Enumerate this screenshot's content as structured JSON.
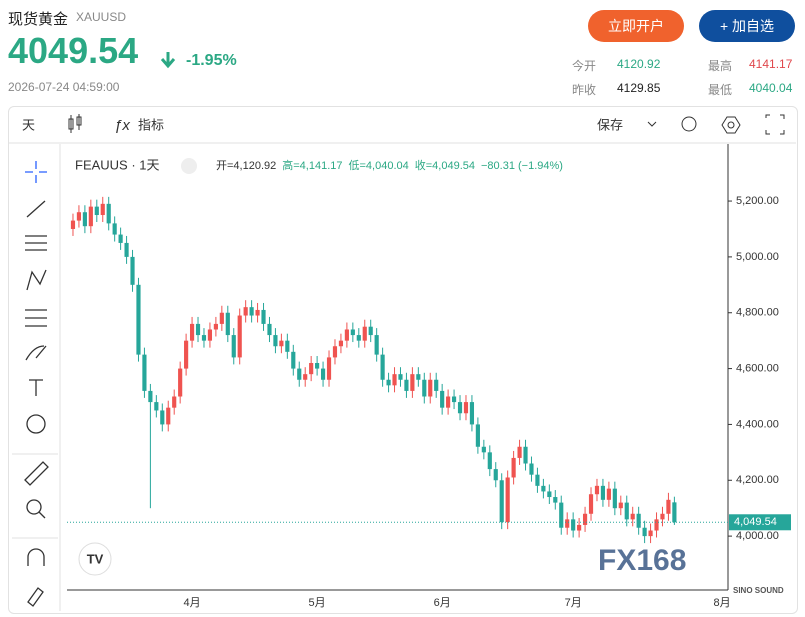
{
  "header": {
    "title": "现货黄金",
    "symbol": "XAUUSD",
    "price": "4049.54",
    "change": "-1.95%",
    "time": "2026-07-24 04:59:00",
    "buttons": [
      "立即开户",
      "+ 加自选"
    ],
    "stats": [
      {
        "label": "今开",
        "value": "4120.92"
      },
      {
        "label": "最高",
        "value": "4141.17"
      },
      {
        "label": "昨收",
        "value": "4129.85"
      },
      {
        "label": "最低",
        "value": "4040.04"
      }
    ]
  },
  "toolbar": {
    "interval": "天",
    "indicators": "指标",
    "save": "保存"
  },
  "watermark": "FX168",
  "corner_logo": "SINO SOUND",
  "chart_data": {
    "type": "candlestick",
    "legend_title": "FEAUUS · 1天",
    "ohlc_legend": [
      "开=4,120.92",
      "高=4,141.17",
      "低=4,040.04",
      "收=4,049.54",
      "−80.31 (−1.94%)"
    ],
    "up_color": "#ef5350",
    "down_color": "#26a69a",
    "categories": [
      null,
      null,
      null,
      null,
      null,
      null,
      null,
      null,
      null,
      null,
      null,
      null,
      null,
      null,
      null,
      null,
      null,
      null,
      null,
      null,
      "4月",
      null,
      null,
      null,
      null,
      null,
      null,
      null,
      null,
      null,
      null,
      null,
      null,
      null,
      null,
      null,
      null,
      null,
      null,
      null,
      null,
      "5月",
      null,
      null,
      null,
      null,
      null,
      null,
      null,
      null,
      null,
      null,
      null,
      null,
      null,
      null,
      null,
      null,
      null,
      null,
      null,
      null,
      "6月",
      null,
      null,
      null,
      null,
      null,
      null,
      null,
      null,
      null,
      null,
      null,
      null,
      null,
      null,
      null,
      null,
      null,
      null,
      null,
      null,
      null,
      "7月",
      null,
      null,
      null,
      null,
      null,
      null,
      null,
      null,
      null,
      null,
      null,
      null,
      null,
      null,
      null,
      null,
      null,
      null,
      null,
      null,
      null,
      null,
      null,
      null,
      "8月"
    ],
    "open": [
      5100,
      5130,
      5160,
      5110,
      5180,
      5150,
      5190,
      5120,
      5080,
      5050,
      5000,
      4900,
      4650,
      4520,
      4480,
      4450,
      4400,
      4460,
      4500,
      4600,
      4700,
      4760,
      4720,
      4700,
      4740,
      4760,
      4800,
      4720,
      4640,
      4790,
      4820,
      4790,
      4810,
      4760,
      4720,
      4680,
      4700,
      4660,
      4600,
      4560,
      4580,
      4620,
      4600,
      4560,
      4640,
      4680,
      4700,
      4740,
      4720,
      4700,
      4750,
      4720,
      4650,
      4560,
      4540,
      4580,
      4560,
      4520,
      4580,
      4560,
      4500,
      4560,
      4520,
      4460,
      4500,
      4480,
      4440,
      4480,
      4400,
      4320,
      4300,
      4240,
      4200,
      4050,
      4210,
      4280,
      4320,
      4260,
      4220,
      4180,
      4160,
      4140,
      4120,
      4030,
      4060,
      4020,
      4040,
      4080,
      4150,
      4180,
      4130,
      4170,
      4100,
      4120,
      4060,
      4080,
      4030,
      4000,
      4020,
      4060,
      4080,
      4120.92,
      null,
      null,
      null,
      null,
      null,
      null,
      null,
      null
    ],
    "high": [
      5155,
      5185,
      5185,
      5205,
      5205,
      5215,
      5215,
      5145,
      5105,
      5075,
      5025,
      4925,
      4675,
      4545,
      4505,
      4475,
      4485,
      4525,
      4625,
      4725,
      4785,
      4785,
      4745,
      4765,
      4785,
      4825,
      4825,
      4745,
      4815,
      4845,
      4845,
      4835,
      4835,
      4785,
      4745,
      4725,
      4725,
      4685,
      4625,
      4605,
      4645,
      4645,
      4625,
      4665,
      4705,
      4725,
      4765,
      4765,
      4745,
      4775,
      4775,
      4745,
      4675,
      4585,
      4605,
      4605,
      4585,
      4605,
      4605,
      4585,
      4585,
      4585,
      4545,
      4525,
      4525,
      4505,
      4505,
      4505,
      4425,
      4345,
      4325,
      4265,
      4225,
      4235,
      4305,
      4345,
      4345,
      4285,
      4245,
      4205,
      4185,
      4165,
      4145,
      4085,
      4085,
      4065,
      4105,
      4175,
      4205,
      4205,
      4195,
      4195,
      4145,
      4145,
      4105,
      4105,
      4055,
      4045,
      4085,
      4105,
      4155,
      4141.17,
      null,
      null,
      null,
      null,
      null,
      null,
      null,
      null
    ],
    "low": [
      5075,
      5105,
      5085,
      5085,
      5125,
      5125,
      5095,
      5055,
      5025,
      4975,
      4875,
      4625,
      4495,
      4100,
      4425,
      4375,
      4375,
      4435,
      4475,
      4575,
      4675,
      4695,
      4675,
      4675,
      4715,
      4735,
      4695,
      4615,
      4615,
      4765,
      4765,
      4765,
      4735,
      4695,
      4655,
      4655,
      4635,
      4575,
      4535,
      4535,
      4555,
      4575,
      4535,
      4535,
      4615,
      4655,
      4675,
      4695,
      4675,
      4675,
      4695,
      4625,
      4535,
      4515,
      4515,
      4535,
      4495,
      4495,
      4535,
      4475,
      4475,
      4495,
      4435,
      4435,
      4455,
      4415,
      4415,
      4375,
      4295,
      4275,
      4215,
      4175,
      4025,
      4025,
      4185,
      4255,
      4235,
      4195,
      4155,
      4135,
      4115,
      4095,
      4005,
      4005,
      3995,
      3995,
      4015,
      4055,
      4125,
      4105,
      4105,
      4075,
      4075,
      4035,
      4035,
      4005,
      3975,
      3975,
      3995,
      4035,
      4055,
      4040.04,
      null,
      null,
      null,
      null,
      null,
      null,
      null,
      null
    ],
    "close": [
      5130,
      5160,
      5110,
      5180,
      5150,
      5190,
      5120,
      5080,
      5050,
      5000,
      4900,
      4650,
      4520,
      4480,
      4450,
      4400,
      4460,
      4500,
      4600,
      4700,
      4760,
      4720,
      4700,
      4740,
      4760,
      4800,
      4720,
      4640,
      4790,
      4820,
      4790,
      4810,
      4760,
      4720,
      4680,
      4700,
      4660,
      4600,
      4560,
      4580,
      4620,
      4600,
      4560,
      4640,
      4680,
      4700,
      4740,
      4720,
      4700,
      4750,
      4720,
      4650,
      4560,
      4540,
      4580,
      4560,
      4520,
      4580,
      4560,
      4500,
      4560,
      4520,
      4460,
      4500,
      4480,
      4440,
      4480,
      4400,
      4320,
      4300,
      4240,
      4200,
      4050,
      4210,
      4280,
      4320,
      4260,
      4220,
      4180,
      4160,
      4140,
      4120,
      4030,
      4060,
      4020,
      4040,
      4080,
      4150,
      4180,
      4130,
      4170,
      4100,
      4120,
      4060,
      4080,
      4030,
      4000,
      4020,
      4060,
      4080,
      4130,
      4049.54,
      null,
      null,
      null,
      null,
      null,
      null,
      null,
      null
    ],
    "last_price_label": "4,049.54",
    "ylim": [
      3807,
      5390
    ],
    "yticks": [
      {
        "value": 4000,
        "label": "4,000.00"
      },
      {
        "value": 4200,
        "label": "4,200.00"
      },
      {
        "value": 4400,
        "label": "4,400.00"
      },
      {
        "value": 4600,
        "label": "4,600.00"
      },
      {
        "value": 4800,
        "label": "4,800.00"
      },
      {
        "value": 5000,
        "label": "5,000.00"
      },
      {
        "value": 5200,
        "label": "5,200.00"
      }
    ]
  }
}
